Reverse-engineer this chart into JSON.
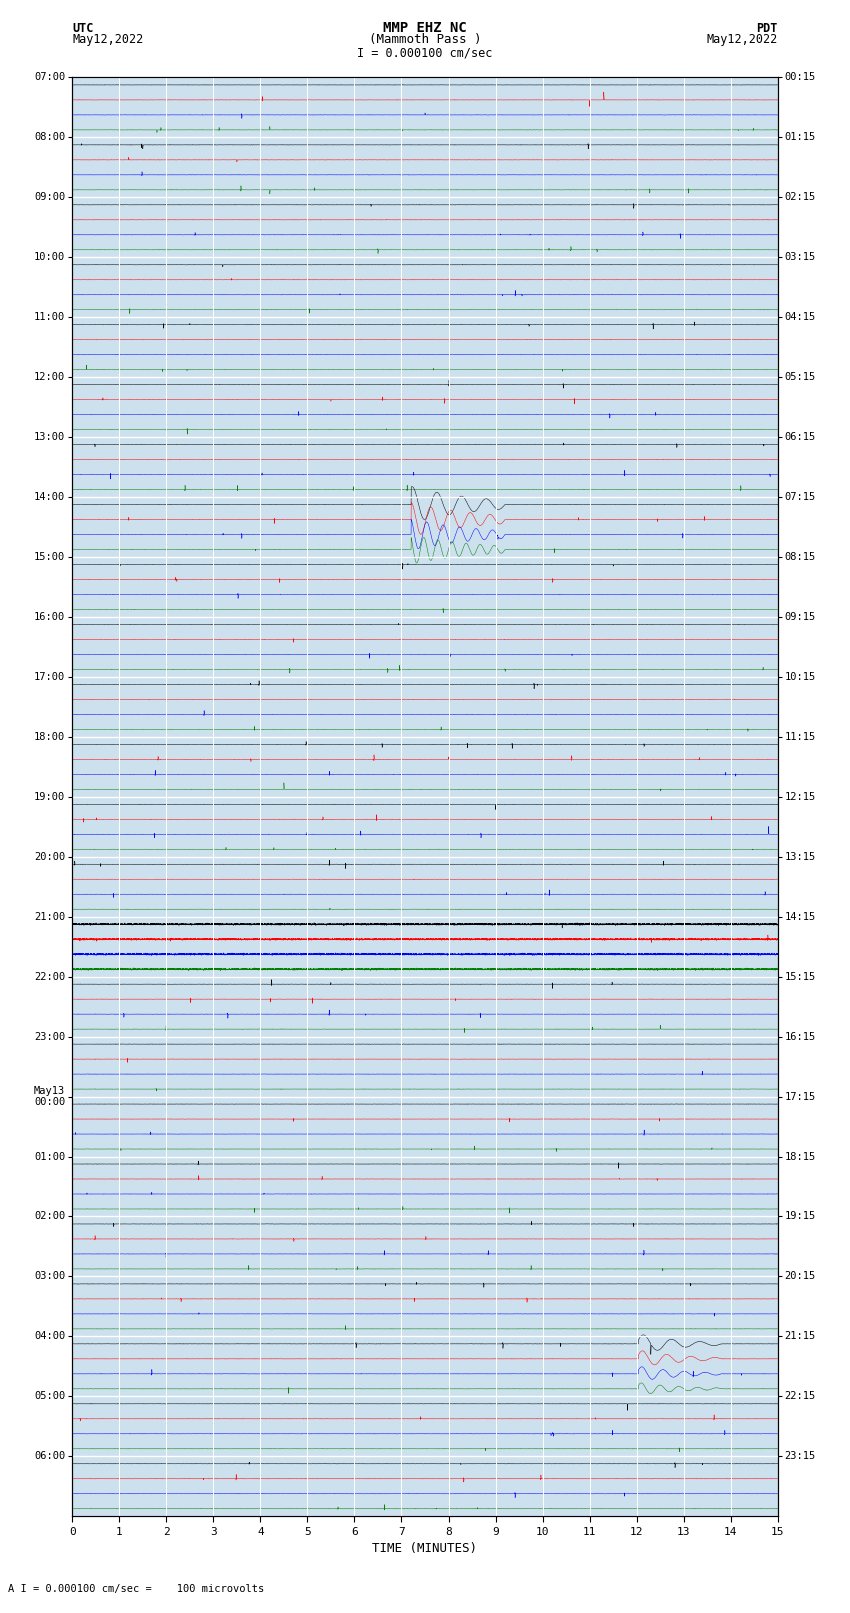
{
  "title_line1": "MMP EHZ NC",
  "title_line2": "(Mammoth Pass )",
  "title_scale": "I = 0.000100 cm/sec",
  "left_label1": "UTC",
  "left_label2": "May12,2022",
  "right_label1": "PDT",
  "right_label2": "May12,2022",
  "xlabel": "TIME (MINUTES)",
  "footnote": "A I = 0.000100 cm/sec =    100 microvolts",
  "utc_labels": [
    "07:00",
    "08:00",
    "09:00",
    "10:00",
    "11:00",
    "12:00",
    "13:00",
    "14:00",
    "15:00",
    "16:00",
    "17:00",
    "18:00",
    "19:00",
    "20:00",
    "21:00",
    "22:00",
    "23:00",
    "May13\n00:00",
    "01:00",
    "02:00",
    "03:00",
    "04:00",
    "05:00",
    "06:00"
  ],
  "pdt_labels": [
    "00:15",
    "01:15",
    "02:15",
    "03:15",
    "04:15",
    "05:15",
    "06:15",
    "07:15",
    "08:15",
    "09:15",
    "10:15",
    "11:15",
    "12:15",
    "13:15",
    "14:15",
    "15:15",
    "16:15",
    "17:15",
    "18:15",
    "19:15",
    "20:15",
    "21:15",
    "22:15",
    "23:15"
  ],
  "n_rows": 24,
  "n_traces_per_row": 4,
  "colors": [
    "black",
    "red",
    "blue",
    "green"
  ],
  "fig_width": 8.5,
  "fig_height": 16.13,
  "bg_color": "white",
  "plot_bg": "#cce0ee",
  "xmin": 0,
  "xmax": 15,
  "xticks": [
    0,
    1,
    2,
    3,
    4,
    5,
    6,
    7,
    8,
    9,
    10,
    11,
    12,
    13,
    14,
    15
  ]
}
